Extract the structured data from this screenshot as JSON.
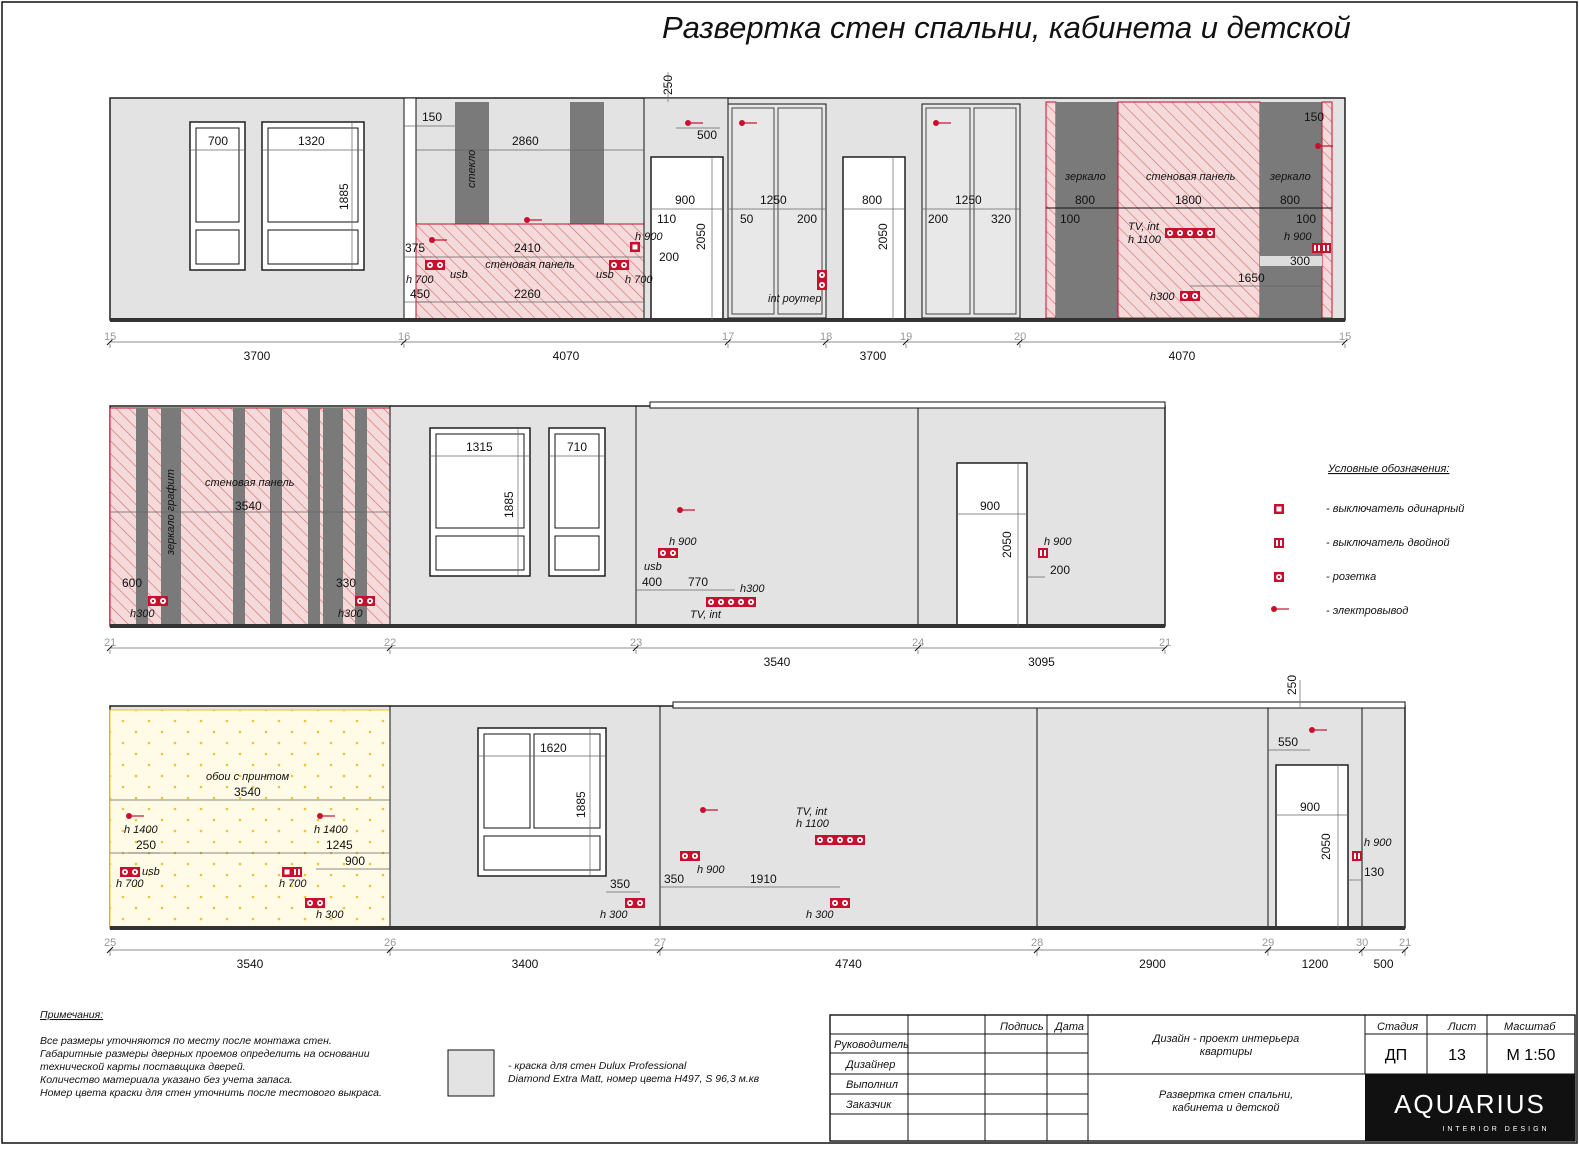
{
  "title": "Развертка стен спальни, кабинета и детской",
  "labels": {
    "glass": "стекло",
    "wall_panel": "стеновая панель",
    "mirror": "зеркало",
    "mirror_graphite": "зеркало графит",
    "wallpaper": "обои с принтом",
    "router": "int роутер",
    "usb": "usb",
    "tv_int": "TV, int",
    "tv_int_h1100": "TV, int\nh 1100"
  },
  "dims": {
    "r1": [
      "700",
      "1320",
      "1885",
      "150",
      "2860",
      "375",
      "2410",
      "450",
      "2260",
      "h 700",
      "h 900",
      "h 700",
      "250",
      "500",
      "900",
      "110",
      "200",
      "2050",
      "1250",
      "50",
      "200",
      "800",
      "2050",
      "1250",
      "200",
      "320",
      "800",
      "1800",
      "800",
      "100",
      "100",
      "h 1100",
      "h 900",
      "300",
      "150",
      "1650",
      "h300"
    ],
    "r2": [
      "1315",
      "710",
      "1885",
      "3540",
      "600",
      "330",
      "h300",
      "h300",
      "h 900",
      "400",
      "770",
      "h300",
      "900",
      "2050",
      "h 900",
      "200"
    ],
    "r3": [
      "3540",
      "h 1400",
      "h 1400",
      "250",
      "1245",
      "900",
      "h 700",
      "h 700",
      "h 300",
      "1620",
      "1885",
      "350",
      "h 300",
      "350",
      "h 900",
      "1910",
      "h 300",
      "h 1100",
      "250",
      "550",
      "900",
      "2050",
      "h 900",
      "130"
    ]
  },
  "row1": {
    "axes": [
      "15",
      "16",
      "17",
      "18",
      "19",
      "20",
      "15"
    ],
    "totals": [
      "3700",
      "4070",
      "3700",
      "4070"
    ]
  },
  "row2": {
    "axes": [
      "21",
      "22",
      "23",
      "24",
      "21"
    ],
    "totals": [
      "3540",
      "3095",
      "3540",
      "3095"
    ]
  },
  "row3": {
    "axes": [
      "25",
      "26",
      "27",
      "28",
      "29",
      "30",
      "21"
    ],
    "totals": [
      "3540",
      "3400",
      "4740",
      "2900",
      "1200",
      "500"
    ]
  },
  "legend": {
    "title": "Условные обозначения:",
    "items": [
      {
        "icon": "single-switch-icon",
        "label": "- выключатель одинарный"
      },
      {
        "icon": "double-switch-icon",
        "label": "- выключатель двойной"
      },
      {
        "icon": "socket-icon",
        "label": "- розетка"
      },
      {
        "icon": "electrical-outlet-icon",
        "label": "- электровывод"
      }
    ]
  },
  "notes": {
    "heading": "Примечания:",
    "lines": [
      "Все размеры уточняются по месту после монтажа стен.",
      "Габаритные размеры дверных проемов определить на основании",
      "технической карты поставщика дверей.",
      "Количество материала указано без учета запаса.",
      "Номер цвета краски для стен уточнить после тестового выкраса."
    ],
    "paint_lines": [
      "- краска для стен Dulux Professional",
      "Diamond Extra Matt, номер цвета H497, S 96,3 м.кв"
    ]
  },
  "title_block": {
    "col_sign": "Подпись",
    "col_date": "Дата",
    "roles": [
      "Руководитель",
      "Дизайнер",
      "Выполнил",
      "Заказчик"
    ],
    "project": "Дизайн - проект интерьера\nквартиры",
    "sheet_title": "Развертка стен спальни,\nкабинета и детской",
    "stage_label": "Стадия",
    "sheet_label": "Лист",
    "scale_label": "Масштаб",
    "stage": "ДП",
    "sheet": "13",
    "scale": "М 1:50",
    "brand": "AQUARIUS",
    "brand_sub": "INTERIOR DESIGN"
  },
  "colors": {
    "accent": "#c8102e",
    "wall": "#e3e3e3",
    "dark_panel": "#7a7a7a",
    "wallpaper": "#fffbe6"
  }
}
